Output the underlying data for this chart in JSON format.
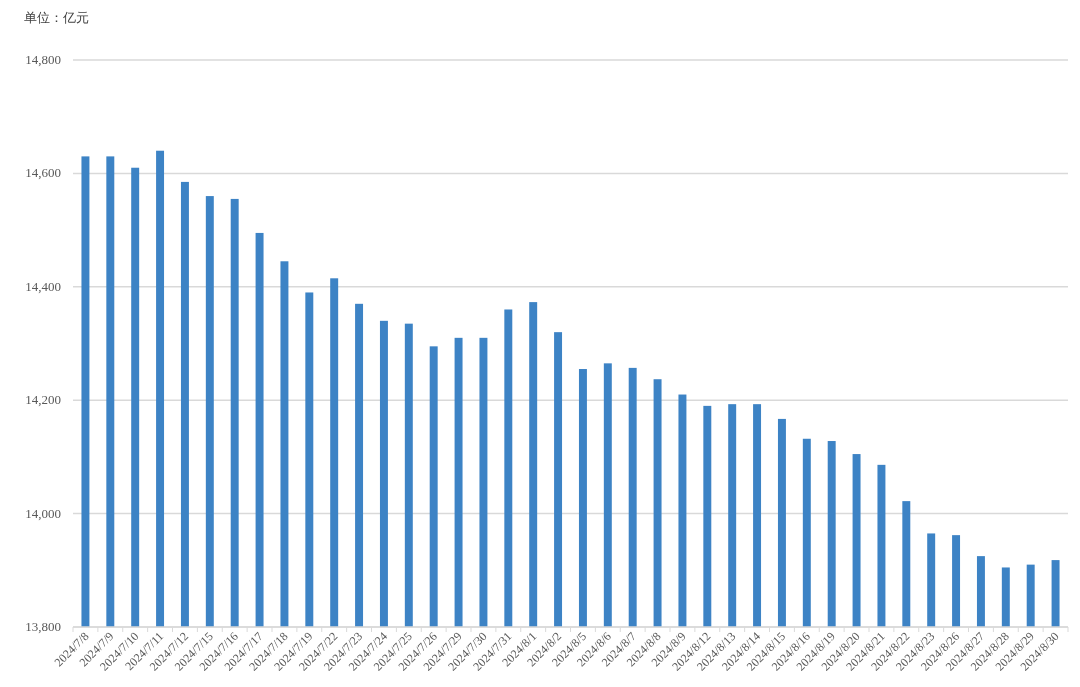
{
  "chart_data": {
    "type": "bar",
    "ylabel": "单位：亿元",
    "categories": [
      "2024/7/8",
      "2024/7/9",
      "2024/7/10",
      "2024/7/11",
      "2024/7/12",
      "2024/7/15",
      "2024/7/16",
      "2024/7/17",
      "2024/7/18",
      "2024/7/19",
      "2024/7/22",
      "2024/7/23",
      "2024/7/24",
      "2024/7/25",
      "2024/7/26",
      "2024/7/29",
      "2024/7/30",
      "2024/7/31",
      "2024/8/1",
      "2024/8/2",
      "2024/8/5",
      "2024/8/6",
      "2024/8/7",
      "2024/8/8",
      "2024/8/9",
      "2024/8/12",
      "2024/8/13",
      "2024/8/14",
      "2024/8/15",
      "2024/8/16",
      "2024/8/19",
      "2024/8/20",
      "2024/8/21",
      "2024/8/22",
      "2024/8/23",
      "2024/8/26",
      "2024/8/27",
      "2024/8/28",
      "2024/8/29",
      "2024/8/30"
    ],
    "values": [
      14630,
      14630,
      14610,
      14640,
      14585,
      14560,
      14555,
      14495,
      14445,
      14390,
      14415,
      14370,
      14340,
      14335,
      14295,
      14310,
      14310,
      14360,
      14373,
      14320,
      14255,
      14265,
      14257,
      14237,
      14210,
      14190,
      14193,
      14193,
      14167,
      14132,
      14128,
      14105,
      14086,
      14022,
      13965,
      13962,
      13925,
      13905,
      13910,
      13918
    ],
    "color": "#3d83c5",
    "ylim": [
      13800,
      14800
    ],
    "yticks": [
      {
        "value": 13800,
        "label": "13,800"
      },
      {
        "value": 14000,
        "label": "14,000"
      },
      {
        "value": 14200,
        "label": "14,200"
      },
      {
        "value": 14400,
        "label": "14,400"
      },
      {
        "value": 14600,
        "label": "14,600"
      },
      {
        "value": 14800,
        "label": "14,800"
      }
    ],
    "grid": "y"
  }
}
